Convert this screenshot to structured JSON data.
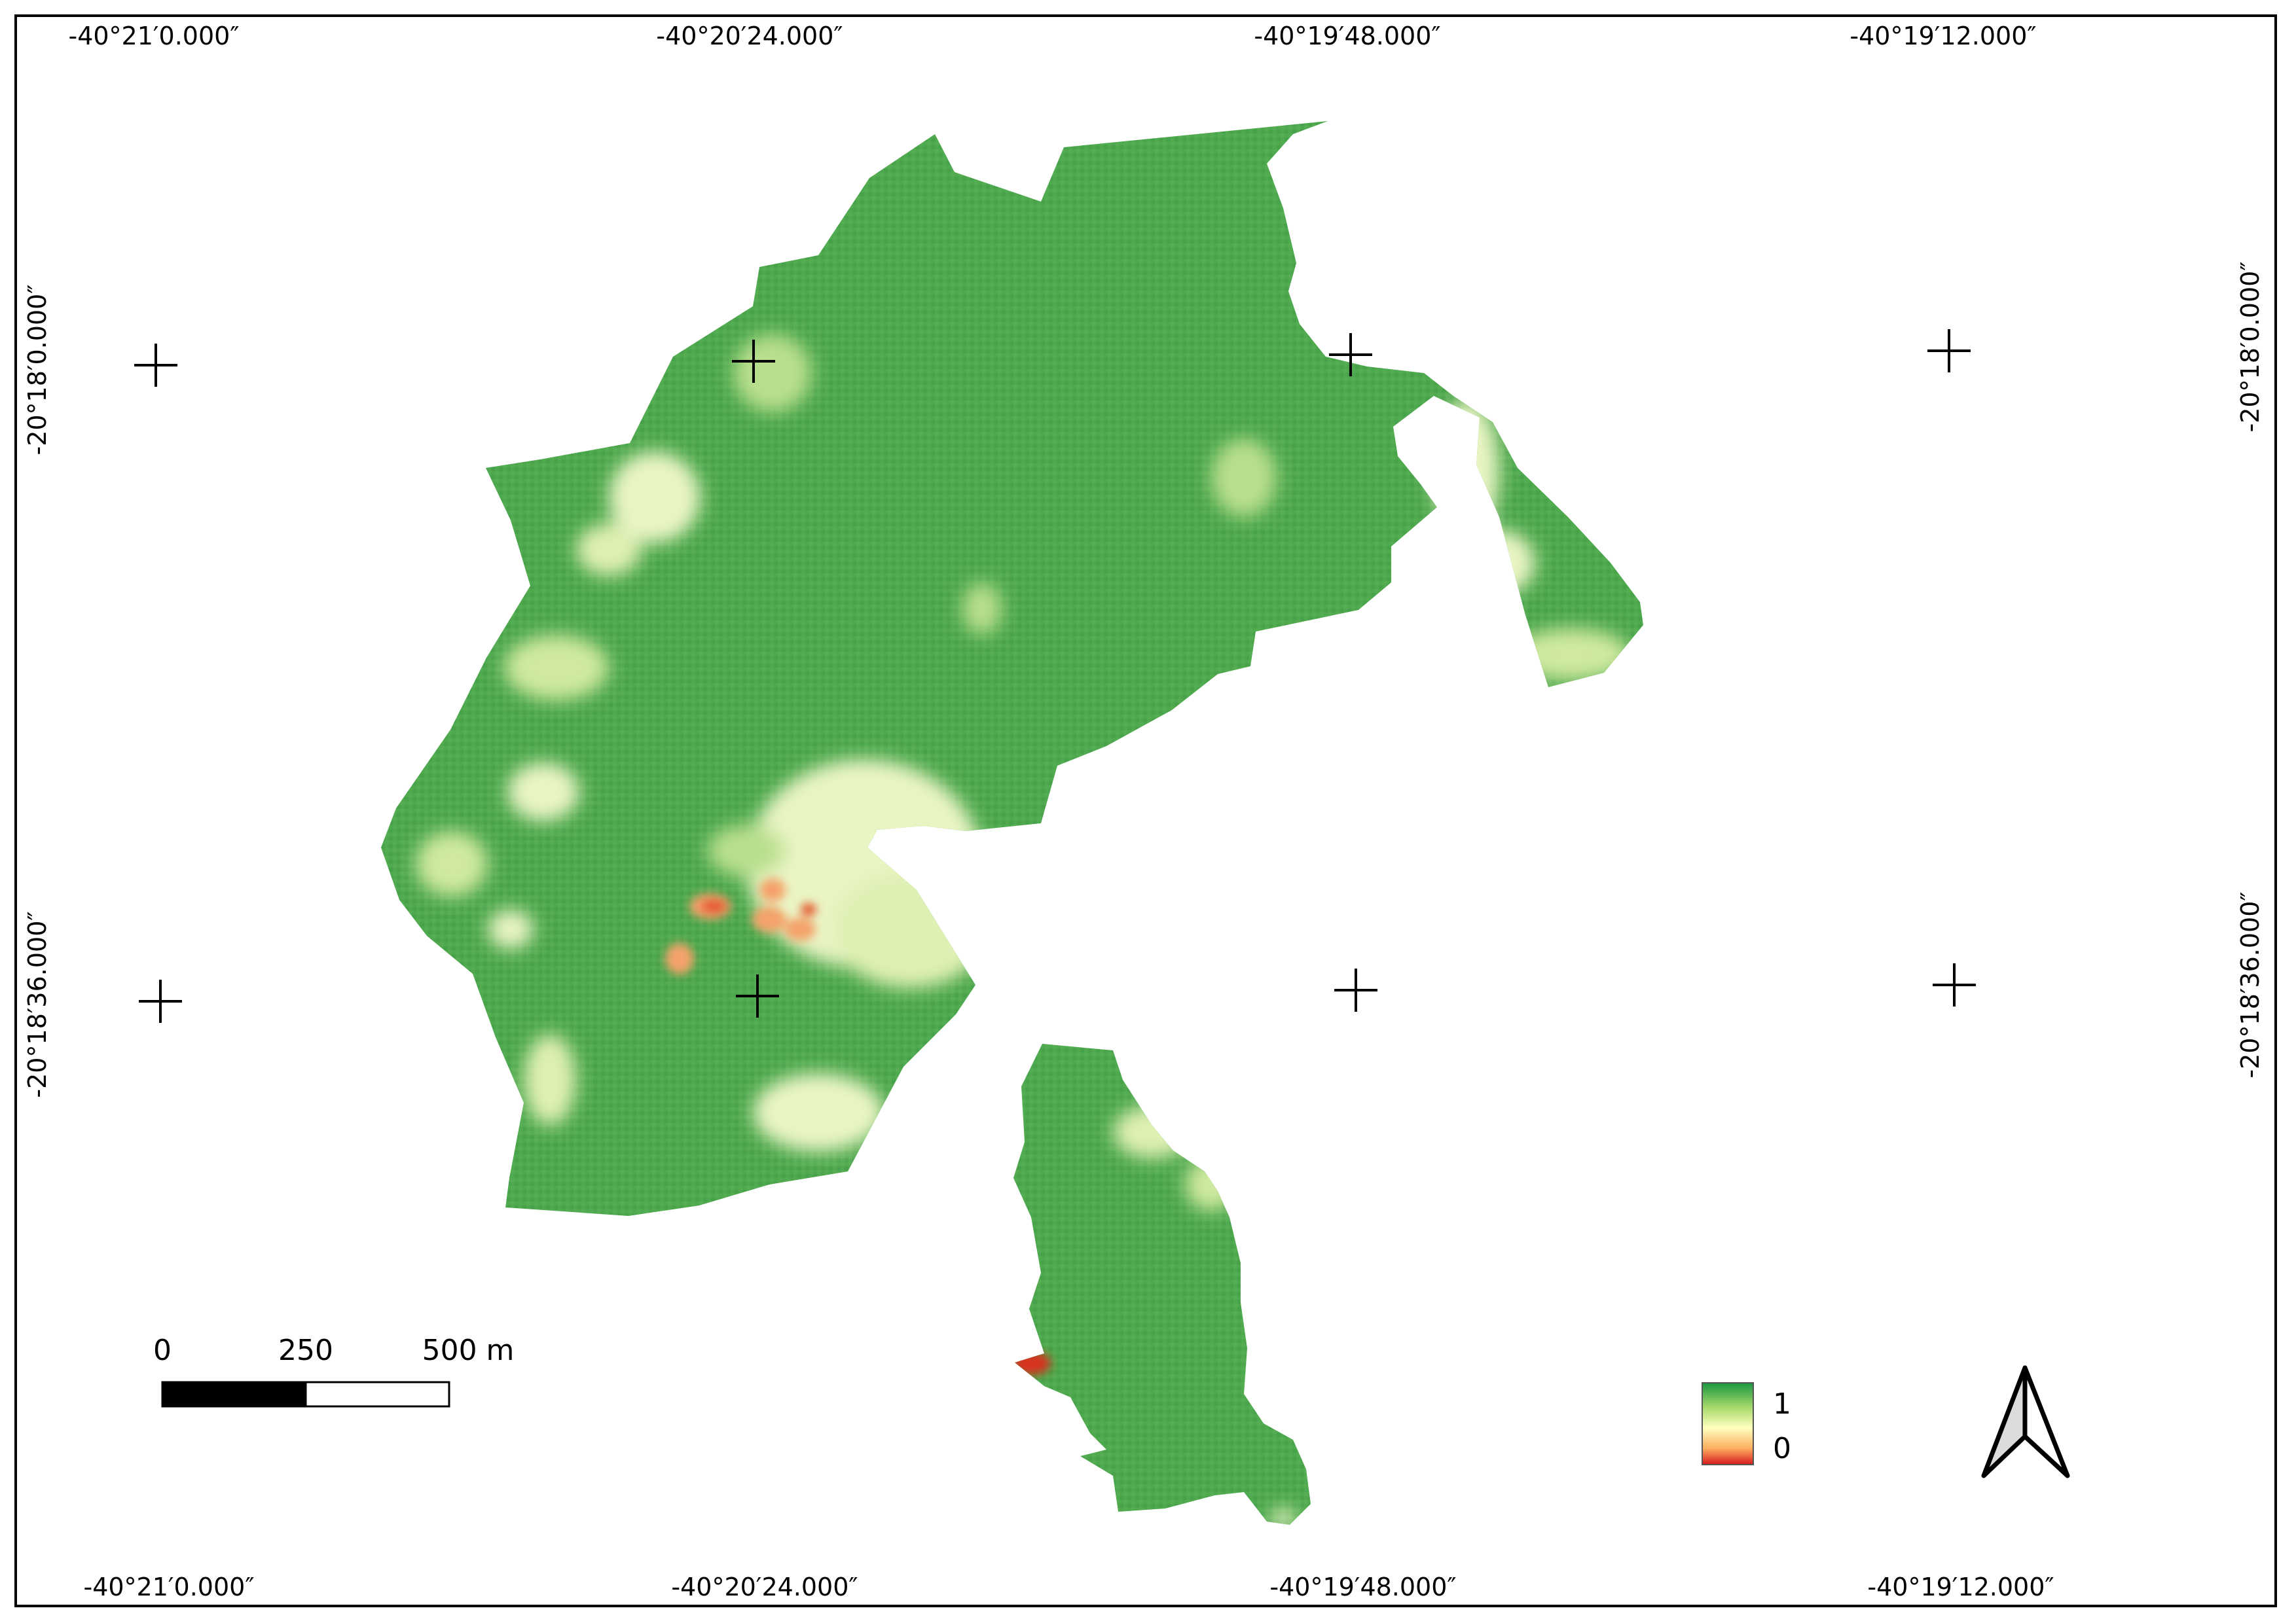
{
  "map": {
    "top_labels": [
      "-40°21′0.000″",
      "-40°20′24.000″",
      "-40°19′48.000″",
      "-40°19′12.000″"
    ],
    "bottom_labels": [
      "-40°21′0.000″",
      "-40°20′24.000″",
      "-40°19′48.000″",
      "-40°19′12.000″"
    ],
    "left_labels": [
      "-20°18′0.000″",
      "-20°18′36.000″"
    ],
    "right_labels": [
      "-20°18′0.000″",
      "-20°18′36.000″"
    ],
    "grid_crosses": 8
  },
  "scale_bar": {
    "labels": [
      "0",
      "250",
      "500 m"
    ]
  },
  "legend": {
    "max_label": "1",
    "min_label": "0",
    "colors": [
      "#1a9641",
      "#a6d96a",
      "#ffffbf",
      "#fdae61",
      "#d7191c"
    ]
  },
  "north_arrow": {
    "icon": "north-arrow-icon"
  },
  "colors": {
    "vegetation_main": "#4ea84f",
    "vegetation_light": "#a8d88a",
    "vegetation_pale": "#eaf5c4",
    "stress_orange": "#f4a36a",
    "stress_red": "#d7301f"
  }
}
